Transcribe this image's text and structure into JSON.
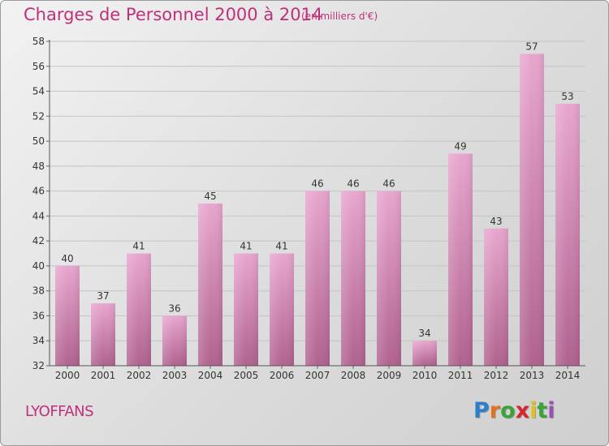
{
  "title": "Charges de Personnel 2000 à 2014",
  "subtitle": "(en milliers d'€)",
  "commune": "LYOFFANS",
  "logo": {
    "letters": [
      "P",
      "r",
      "o",
      "x",
      "i",
      "t",
      "i"
    ],
    "colors": [
      "#2a7fc9",
      "#e0731f",
      "#3aa43a",
      "#d8262f",
      "#e0c21b",
      "#3aa43a",
      "#9b4fb5"
    ]
  },
  "colors": {
    "accent": "#c0307a",
    "bar_top": "#e8a6cf",
    "bar_bottom": "#b0628f"
  },
  "chart_data": {
    "type": "bar",
    "categories": [
      "2000",
      "2001",
      "2002",
      "2003",
      "2004",
      "2005",
      "2006",
      "2007",
      "2008",
      "2009",
      "2010",
      "2011",
      "2012",
      "2013",
      "2014"
    ],
    "values": [
      40,
      37,
      41,
      36,
      45,
      41,
      41,
      46,
      46,
      46,
      34,
      49,
      43,
      57,
      53
    ],
    "title": "Charges de Personnel 2000 à 2014",
    "xlabel": "",
    "ylabel": "",
    "ylim": [
      32,
      58
    ],
    "yticks": [
      32,
      34,
      36,
      38,
      40,
      42,
      44,
      46,
      48,
      50,
      52,
      54,
      56,
      58
    ],
    "grid": "horizontal",
    "data_labels": true
  }
}
